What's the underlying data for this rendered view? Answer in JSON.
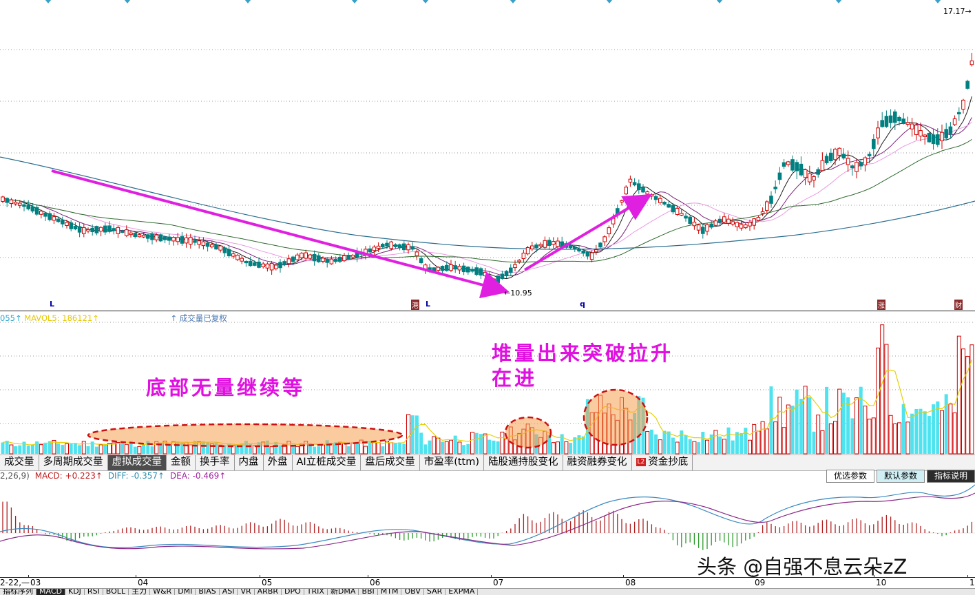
{
  "price_chart": {
    "max_label": "17.17→",
    "min_label": "←10.95",
    "markers": {
      "L1": "L",
      "gang": "港",
      "L2": "L",
      "q": "q",
      "zhang": "涨",
      "cai": "财"
    },
    "up_color": "#d00000",
    "down_color": "#008080",
    "arrow_color": "#e020e0"
  },
  "volume_legend": {
    "vol_fragment": "055↑",
    "mavol5": "MAVOL5: 186121↑",
    "note": "↑ 成交量已复权"
  },
  "annotations": {
    "bottom_no_volume": "底部无量继续等",
    "volume_breakout_line1": "堆量出来突破拉升",
    "volume_breakout_line2": "在进"
  },
  "indicator_tabs": [
    {
      "label": "成交量",
      "active": false
    },
    {
      "label": "多周期成交量",
      "active": false
    },
    {
      "label": "虚拟成交量",
      "active": true
    },
    {
      "label": "金额",
      "active": false
    },
    {
      "label": "换手率",
      "active": false
    },
    {
      "label": "内盘",
      "active": false
    },
    {
      "label": "外盘",
      "active": false
    },
    {
      "label": "AI立桩成交量",
      "active": false
    },
    {
      "label": "盘后成交量",
      "active": false
    },
    {
      "label": "市盈率(ttm)",
      "active": false
    },
    {
      "label": "陆股通持股变化",
      "active": false
    },
    {
      "label": "融资融券变化",
      "active": false
    },
    {
      "label": "资金抄底",
      "active": false,
      "badge": "L2"
    }
  ],
  "macd_legend": {
    "params": "2,26,9)",
    "macd": "MACD: +0.223↑",
    "diff": "DIFF: -0.357↑",
    "dea": "DEA: -0.469↑"
  },
  "param_buttons": [
    "优选参数",
    "默认参数",
    "指标说明"
  ],
  "x_axis": {
    "date_fragment": "2-22,—",
    "months": [
      "03",
      "04",
      "05",
      "06",
      "07",
      "08",
      "09",
      "10",
      "1"
    ]
  },
  "bottom_tabs": [
    "指标序列",
    "MACD",
    "KDJ",
    "RSI",
    "BOLL",
    "主力",
    "W&R",
    "DMI",
    "BIAS",
    "ASI",
    "VR",
    "ARBR",
    "DPO",
    "TRIX",
    "新DMA",
    "BBI",
    "MTM",
    "OBV",
    "SAR",
    "EXPMA"
  ],
  "watermark": "头条 @自强不息云朵zZ"
}
